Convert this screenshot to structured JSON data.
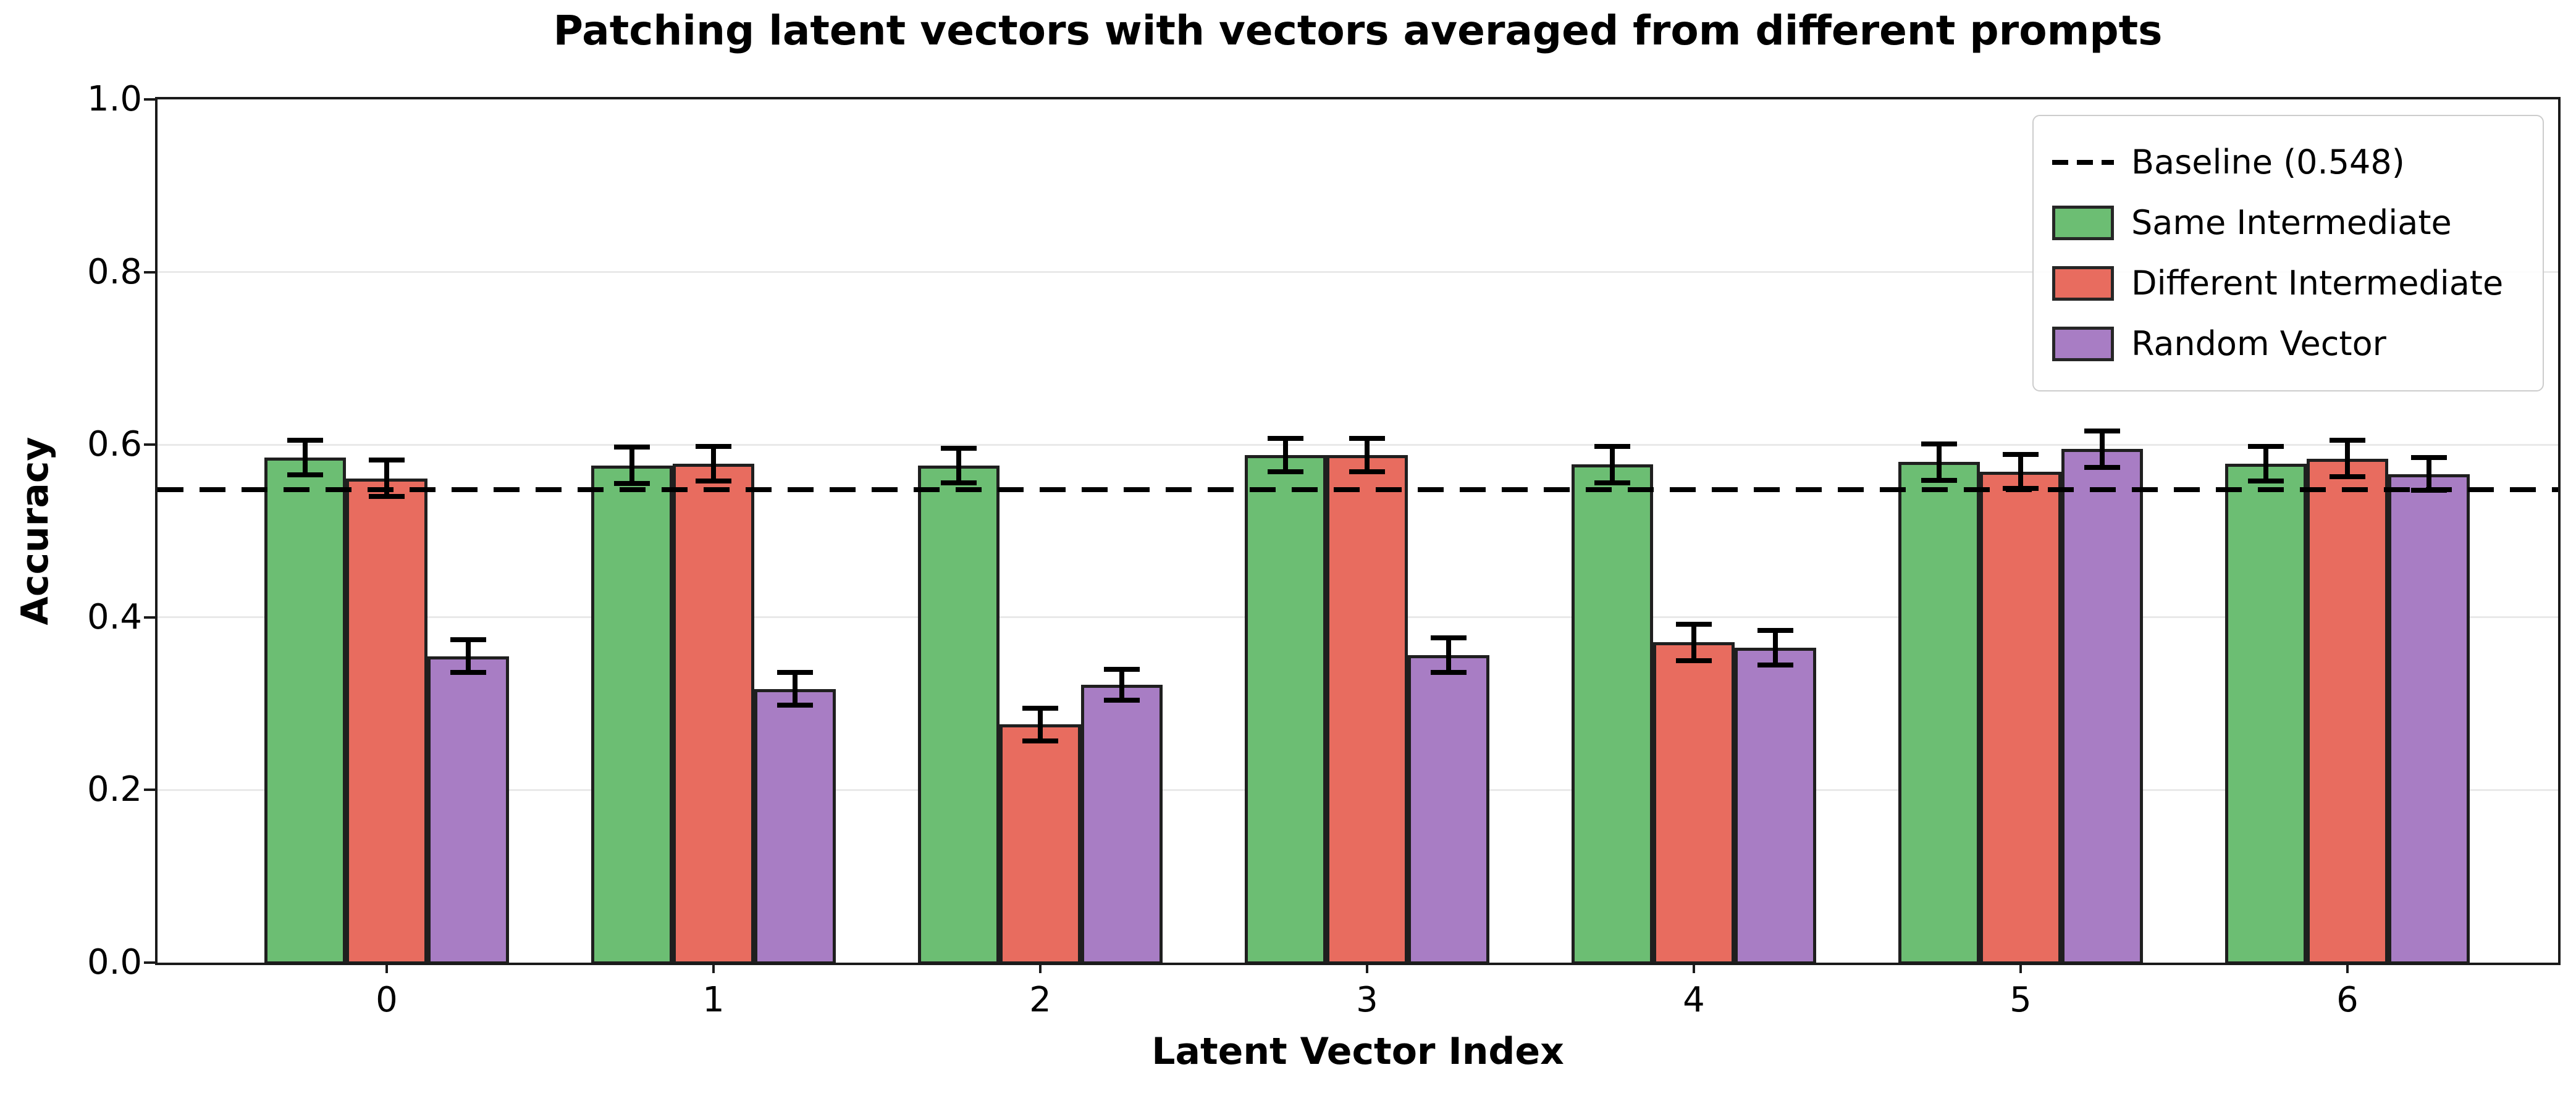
{
  "title": "Patching latent vectors with vectors averaged from different prompts",
  "x_axis_label": "Latent Vector Index",
  "y_axis_label": "Accuracy",
  "legend": {
    "entries": [
      {
        "label": "Baseline (0.548)",
        "type": "dashed-line",
        "color": "#000000"
      },
      {
        "label": "Same Intermediate",
        "type": "swatch",
        "color": "#6cbe73"
      },
      {
        "label": "Different Intermediate",
        "type": "swatch",
        "color": "#e86c5f"
      },
      {
        "label": "Random Vector",
        "type": "swatch",
        "color": "#a87dc4"
      }
    ],
    "position": "upper right"
  },
  "colors": {
    "same_intermediate": "#6cbe73",
    "different_intermediate": "#e86c5f",
    "random_vector": "#a87dc4",
    "bar_edge": "#1f1f1f",
    "baseline": "#000000",
    "grid": "#e9e9e9"
  },
  "chart_data": {
    "type": "bar",
    "title": "Patching latent vectors with vectors averaged from different prompts",
    "xlabel": "Latent Vector Index",
    "ylabel": "Accuracy",
    "categories": [
      "0",
      "1",
      "2",
      "3",
      "4",
      "5",
      "6"
    ],
    "series": [
      {
        "name": "Same Intermediate",
        "color": "#6cbe73",
        "values": [
          0.585,
          0.576,
          0.576,
          0.588,
          0.577,
          0.58,
          0.578
        ],
        "errors": [
          0.02,
          0.021,
          0.02,
          0.019,
          0.021,
          0.021,
          0.02
        ]
      },
      {
        "name": "Different Intermediate",
        "color": "#e86c5f",
        "values": [
          0.561,
          0.578,
          0.276,
          0.588,
          0.371,
          0.569,
          0.584
        ],
        "errors": [
          0.021,
          0.02,
          0.019,
          0.019,
          0.021,
          0.02,
          0.021
        ]
      },
      {
        "name": "Random Vector",
        "color": "#a87dc4",
        "values": [
          0.355,
          0.317,
          0.322,
          0.356,
          0.365,
          0.595,
          0.566
        ],
        "errors": [
          0.019,
          0.019,
          0.018,
          0.02,
          0.02,
          0.021,
          0.019
        ]
      }
    ],
    "baseline": {
      "label": "Baseline (0.548)",
      "value": 0.548
    },
    "ylim": [
      0.0,
      1.0
    ],
    "yticks": [
      "0.0",
      "0.2",
      "0.4",
      "0.6",
      "0.8",
      "1.0"
    ],
    "grid": true,
    "legend_position": "upper right"
  }
}
